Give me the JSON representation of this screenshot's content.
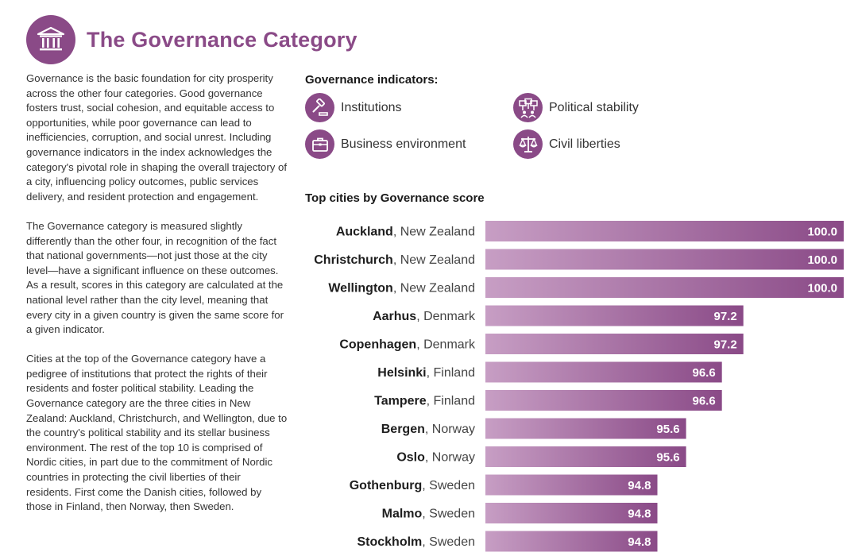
{
  "header": {
    "title": "The Governance Category",
    "icon": "government-building-icon"
  },
  "intro": {
    "paragraphs": [
      "Governance is the basic foundation for city prosperity across the other four categories. Good governance fosters trust, social cohesion, and equitable access to opportunities, while poor governance can lead to inefficiencies, corruption, and social unrest. Including governance indicators in the index acknowledges the category's pivotal role in shaping the overall trajectory of a city, influencing policy outcomes, public services delivery, and resident protection and engagement.",
      "The Governance category is measured slightly differently than the other four, in recognition of the fact that national governments—not just those at the city level—have a significant influence on these outcomes. As a result, scores in this category are calculated at the national level rather than the city level, meaning that every city in a given country is given the same score for a given indicator.",
      "Cities at the top of the Governance category have a pedigree of institutions that protect the rights of their residents and foster political stability. Leading the Governance category are the three cities in New Zealand: Auckland, Christchurch, and Wellington, due to the country's political stability and its stellar business environment. The rest of the top 10 is comprised of Nordic cities, in part due to the commitment of Nordic countries in protecting the civil liberties of their residents. First come the Danish cities, followed by those in Finland, then Norway, then Sweden."
    ]
  },
  "indicators": {
    "title": "Governance indicators:",
    "items": [
      {
        "label": "Institutions",
        "icon": "gavel-icon"
      },
      {
        "label": "Political stability",
        "icon": "protest-signs-icon"
      },
      {
        "label": "Business environment",
        "icon": "briefcase-icon"
      },
      {
        "label": "Civil liberties",
        "icon": "scales-icon"
      }
    ]
  },
  "colors": {
    "accent": "#8a4a87",
    "bar_light": "#c79ec4",
    "bar_dark": "#8a4a87"
  },
  "chart_data": {
    "type": "bar",
    "orientation": "horizontal",
    "title": "Top cities by Governance score",
    "categories": [
      {
        "city": "Auckland",
        "country": "New Zealand"
      },
      {
        "city": "Christchurch",
        "country": "New Zealand"
      },
      {
        "city": "Wellington",
        "country": "New Zealand"
      },
      {
        "city": "Aarhus",
        "country": "Denmark"
      },
      {
        "city": "Copenhagen",
        "country": "Denmark"
      },
      {
        "city": "Helsinki",
        "country": "Finland"
      },
      {
        "city": "Tampere",
        "country": "Finland"
      },
      {
        "city": "Bergen",
        "country": "Norway"
      },
      {
        "city": "Oslo",
        "country": "Norway"
      },
      {
        "city": "Gothenburg",
        "country": "Sweden"
      },
      {
        "city": "Malmo",
        "country": "Sweden"
      },
      {
        "city": "Stockholm",
        "country": "Sweden"
      }
    ],
    "values": [
      100.0,
      100.0,
      100.0,
      97.2,
      97.2,
      96.6,
      96.6,
      95.6,
      95.6,
      94.8,
      94.8,
      94.8
    ],
    "value_labels": [
      "100.0",
      "100.0",
      "100.0",
      "97.2",
      "97.2",
      "96.6",
      "96.6",
      "95.6",
      "95.6",
      "94.8",
      "94.8",
      "94.8"
    ],
    "xlim": [
      90,
      100
    ],
    "xlabel": "",
    "ylabel": ""
  }
}
